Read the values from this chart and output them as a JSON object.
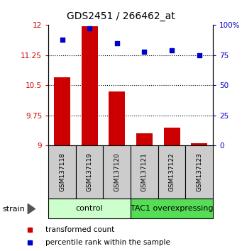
{
  "title": "GDS2451 / 266462_at",
  "samples": [
    "GSM137118",
    "GSM137119",
    "GSM137120",
    "GSM137121",
    "GSM137122",
    "GSM137123"
  ],
  "bar_values": [
    10.7,
    11.97,
    10.35,
    9.3,
    9.45,
    9.05
  ],
  "dot_values": [
    88,
    97,
    85,
    78,
    79,
    75
  ],
  "bar_color": "#cc0000",
  "dot_color": "#0000cc",
  "ylim_left": [
    9,
    12
  ],
  "ylim_right": [
    0,
    100
  ],
  "yticks_left": [
    9,
    9.75,
    10.5,
    11.25,
    12
  ],
  "yticks_right": [
    0,
    25,
    50,
    75,
    100
  ],
  "ytick_labels_left": [
    "9",
    "9.75",
    "10.5",
    "11.25",
    "12"
  ],
  "ytick_labels_right": [
    "0",
    "25",
    "50",
    "75",
    "100%"
  ],
  "groups": [
    {
      "label": "control",
      "indices": [
        0,
        1,
        2
      ],
      "color": "#ccffcc"
    },
    {
      "label": "TAC1 overexpressing",
      "indices": [
        3,
        4,
        5
      ],
      "color": "#55dd55"
    }
  ],
  "strain_label": "strain",
  "legend_bar_label": "transformed count",
  "legend_dot_label": "percentile rank within the sample",
  "bar_bottom": 9,
  "sample_box_color": "#cccccc",
  "bar_width": 0.6
}
